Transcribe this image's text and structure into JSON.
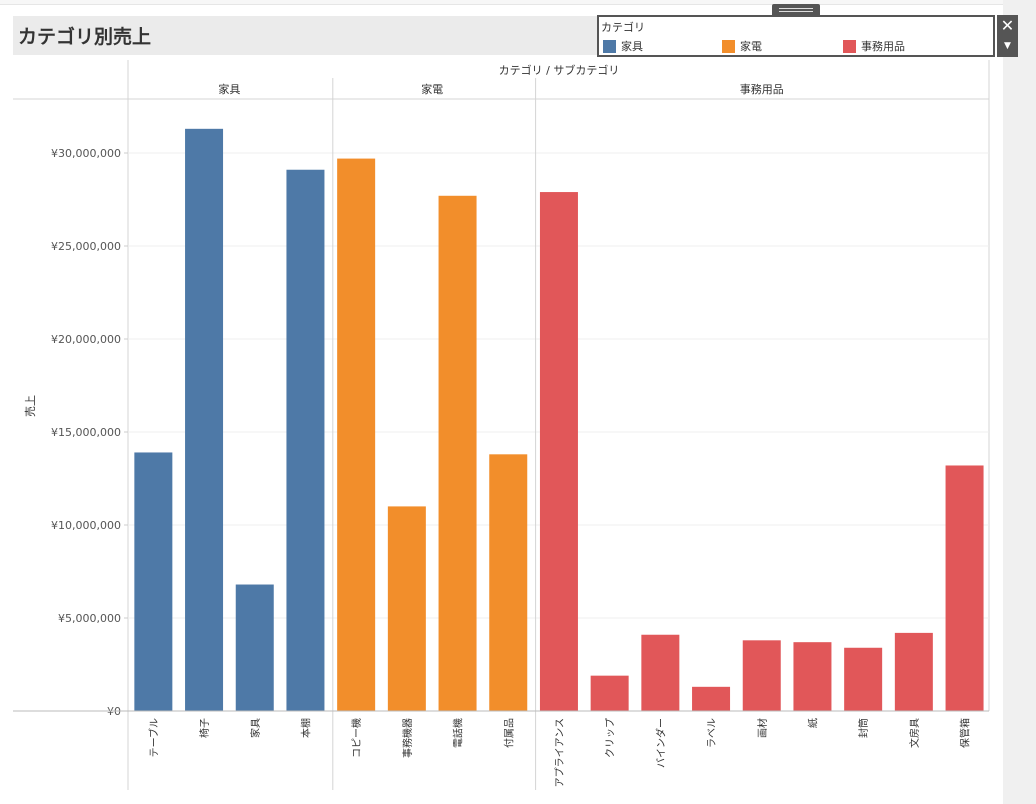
{
  "title": "カテゴリ別売上",
  "legend": {
    "title": "カテゴリ",
    "items": [
      {
        "label": "家具",
        "color": "#4e79a7"
      },
      {
        "label": "家電",
        "color": "#f28e2b"
      },
      {
        "label": "事務用品",
        "color": "#e15759"
      }
    ]
  },
  "chart_data": {
    "type": "bar",
    "title": "カテゴリ別売上",
    "column_header": "カテゴリ / サブカテゴリ",
    "ylabel": "売上",
    "ylim": [
      0,
      30000000
    ],
    "yticks": [
      0,
      5000000,
      10000000,
      15000000,
      20000000,
      25000000,
      30000000
    ],
    "ytick_labels": [
      "¥0",
      "¥5,000,000",
      "¥10,000,000",
      "¥15,000,000",
      "¥20,000,000",
      "¥25,000,000",
      "¥30,000,000"
    ],
    "grid": true,
    "legend_position": "top-right",
    "groups": [
      {
        "name": "家具",
        "color": "#4e79a7",
        "categories": [
          "テーブル",
          "椅子",
          "家具",
          "本棚"
        ],
        "values": [
          13900000,
          31300000,
          6800000,
          29100000
        ]
      },
      {
        "name": "家電",
        "color": "#f28e2b",
        "categories": [
          "コピー機",
          "事務機器",
          "電話機",
          "付属品"
        ],
        "values": [
          29700000,
          11000000,
          27700000,
          13800000
        ]
      },
      {
        "name": "事務用品",
        "color": "#e15759",
        "categories": [
          "アプライアンス",
          "クリップ",
          "バインダー",
          "ラベル",
          "画材",
          "紙",
          "封筒",
          "文房具",
          "保管箱"
        ],
        "values": [
          27900000,
          1900000,
          4100000,
          1300000,
          3800000,
          3700000,
          3400000,
          4200000,
          13200000
        ]
      }
    ]
  }
}
